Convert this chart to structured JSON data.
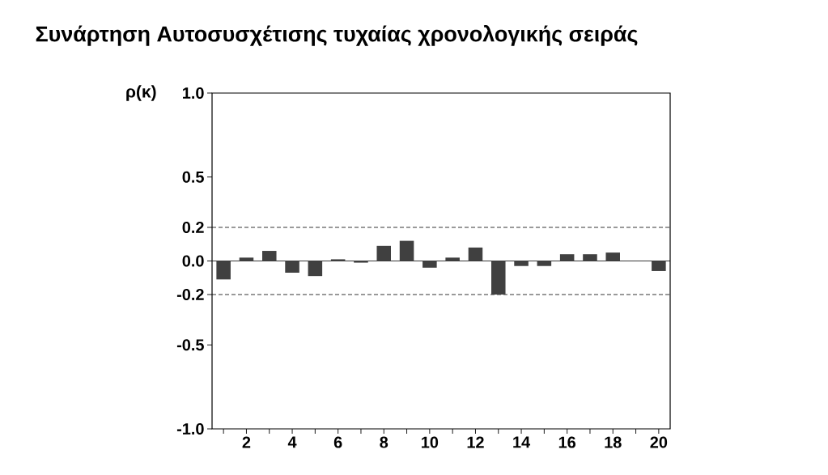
{
  "chart_data": {
    "type": "bar",
    "title": "Συνάρτηση Αυτοσυσχέτισης τυχαίας χρονολογικής σειράς",
    "ylabel": "ρ(κ)",
    "x": [
      1,
      2,
      3,
      4,
      5,
      6,
      7,
      8,
      9,
      10,
      11,
      12,
      13,
      14,
      15,
      16,
      17,
      18,
      19,
      20
    ],
    "values": [
      -0.11,
      0.02,
      0.06,
      -0.07,
      -0.09,
      0.01,
      -0.01,
      0.09,
      0.12,
      -0.04,
      0.02,
      0.08,
      -0.2,
      -0.03,
      -0.03,
      0.04,
      0.04,
      0.05,
      0.0,
      -0.06
    ],
    "color": "#404040",
    "xlim": [
      0.5,
      20.5
    ],
    "xticks": [
      {
        "value": 1,
        "label": null
      },
      2,
      {
        "value": 3,
        "label": null
      },
      4,
      {
        "value": 5,
        "label": null
      },
      6,
      {
        "value": 7,
        "label": null
      },
      8,
      {
        "value": 9,
        "label": null
      },
      10,
      {
        "value": 11,
        "label": null
      },
      12,
      {
        "value": 13,
        "label": null
      },
      14,
      {
        "value": 15,
        "label": null
      },
      16,
      {
        "value": 17,
        "label": null
      },
      18,
      {
        "value": 19,
        "label": null
      },
      20
    ],
    "ylim": [
      -1.0,
      1.0
    ],
    "yticks": [
      {
        "value": -1.0,
        "label": "-1.0"
      },
      {
        "value": -0.5,
        "label": "-0.5"
      },
      {
        "value": -0.2,
        "label": "-0.2"
      },
      {
        "value": 0.0,
        "label": "0.0"
      },
      {
        "value": 0.2,
        "label": "0.2"
      },
      {
        "value": 0.5,
        "label": "0.5"
      },
      {
        "value": 1.0,
        "label": "1.0"
      }
    ],
    "ref_lines": [
      {
        "axis": "y",
        "value": 0.2,
        "line_style": "dashed"
      },
      {
        "axis": "y",
        "value": -0.2,
        "line_style": "dashed"
      }
    ],
    "grid": false
  }
}
